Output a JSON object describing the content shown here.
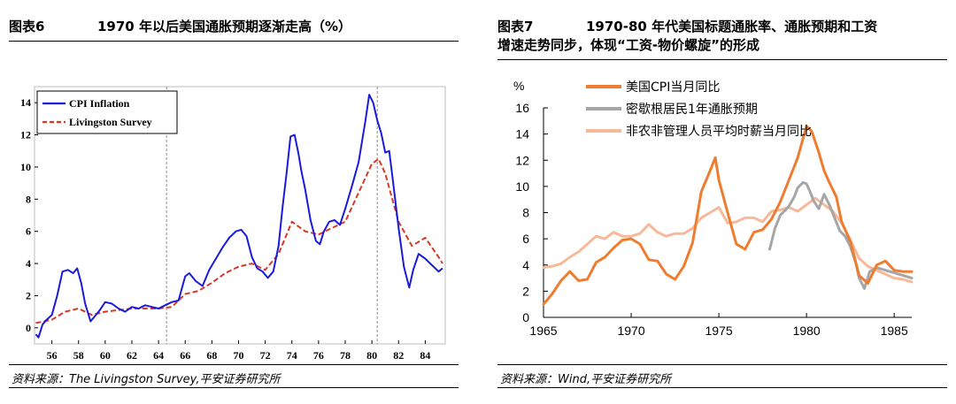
{
  "fig6": {
    "title_num": "图表6",
    "title_text": "1970 年以后美国通胀预期逐渐走高（%）",
    "source": "资料来源：The Livingston Survey,平安证券研究所"
  },
  "fig7": {
    "title_num": "图表7",
    "title_line1": "1970-80 年代美国标题通胀率、通胀预期和工资",
    "title_line2": "增速走势同步，体现“工资-物价螺旋”的形成",
    "source": "资料来源：Wind,平安证券研究所"
  },
  "chart_data": [
    {
      "type": "line",
      "title": "1970 年以后美国通胀预期逐渐走高（%）",
      "xlabel": "",
      "ylabel": "",
      "xlim": [
        1954.7,
        1985.5
      ],
      "ylim": [
        -1,
        15
      ],
      "x_ticks": [
        1956,
        1958,
        1960,
        1962,
        1964,
        1966,
        1968,
        1970,
        1972,
        1974,
        1976,
        1978,
        1980,
        1982,
        1984
      ],
      "x_tick_labels": [
        "56",
        "58",
        "60",
        "62",
        "64",
        "66",
        "68",
        "70",
        "72",
        "74",
        "76",
        "78",
        "80",
        "82",
        "84"
      ],
      "y_ticks": [
        0,
        2,
        4,
        6,
        8,
        10,
        12,
        14
      ],
      "y_tick_labels": [
        "0",
        "2",
        "4",
        "6",
        "8",
        "10",
        "12",
        "14"
      ],
      "vlines": [
        1964.6,
        1980.4
      ],
      "legend": "top-left",
      "series": [
        {
          "name": "CPI Inflation",
          "color": "#1a1adc",
          "style": "solid",
          "x": [
            1954.8,
            1955,
            1955.3,
            1955.6,
            1956,
            1956.4,
            1956.8,
            1957.2,
            1957.6,
            1957.9,
            1958.2,
            1958.5,
            1958.9,
            1959.2,
            1959.6,
            1960,
            1960.5,
            1961,
            1961.5,
            1962,
            1962.5,
            1963,
            1963.5,
            1964,
            1964.5,
            1965,
            1965.5,
            1966,
            1966.3,
            1966.8,
            1967.3,
            1967.8,
            1968.3,
            1968.8,
            1969.3,
            1969.8,
            1970.2,
            1970.6,
            1971,
            1971.4,
            1971.8,
            1972.2,
            1972.6,
            1973,
            1973.3,
            1973.6,
            1973.9,
            1974.2,
            1974.5,
            1974.7,
            1975,
            1975.4,
            1975.8,
            1976.1,
            1976.4,
            1976.8,
            1977.2,
            1977.6,
            1978,
            1978.5,
            1979,
            1979.5,
            1979.8,
            1980.1,
            1980.4,
            1980.7,
            1981,
            1981.3,
            1981.6,
            1982,
            1982.4,
            1982.8,
            1983.1,
            1983.5,
            1984,
            1984.5,
            1985,
            1985.3
          ],
          "y": [
            -0.4,
            -0.6,
            0.2,
            0.5,
            0.8,
            2.0,
            3.5,
            3.6,
            3.4,
            3.7,
            2.8,
            1.5,
            0.4,
            0.7,
            1.1,
            1.6,
            1.5,
            1.2,
            1.0,
            1.3,
            1.2,
            1.4,
            1.3,
            1.2,
            1.4,
            1.6,
            1.7,
            3.2,
            3.4,
            2.9,
            2.6,
            3.6,
            4.3,
            5.0,
            5.6,
            6.0,
            6.1,
            5.7,
            4.4,
            3.7,
            3.5,
            3.1,
            3.5,
            5.1,
            7.5,
            9.6,
            11.9,
            12.0,
            10.8,
            9.8,
            8.6,
            6.7,
            5.4,
            5.2,
            6.0,
            6.6,
            6.7,
            6.4,
            7.4,
            8.8,
            10.3,
            12.8,
            14.5,
            14.0,
            12.9,
            12.1,
            10.9,
            11.0,
            9.0,
            6.2,
            3.8,
            2.5,
            3.6,
            4.6,
            4.3,
            3.9,
            3.5,
            3.7
          ]
        },
        {
          "name": "Livingston Survey",
          "color": "#d43a2c",
          "style": "dashed",
          "x": [
            1954.8,
            1956,
            1957,
            1958,
            1959,
            1960,
            1961,
            1962,
            1963,
            1964,
            1965,
            1966,
            1967,
            1968,
            1969,
            1970,
            1971,
            1972,
            1973,
            1974,
            1975,
            1976,
            1977,
            1978,
            1979,
            1980,
            1980.5,
            1981,
            1981.5,
            1982,
            1983,
            1984,
            1985,
            1985.3
          ],
          "y": [
            0.3,
            0.5,
            1.0,
            1.2,
            0.8,
            1.0,
            1.1,
            1.2,
            1.2,
            1.2,
            1.3,
            2.1,
            2.3,
            2.8,
            3.4,
            3.8,
            4.0,
            3.6,
            4.6,
            6.6,
            6.0,
            5.8,
            6.2,
            6.6,
            8.4,
            10.2,
            10.5,
            9.6,
            8.1,
            6.6,
            5.1,
            5.6,
            4.4,
            4.0
          ]
        }
      ]
    },
    {
      "type": "line",
      "title": "1970-80 年代美国标题通胀率、通胀预期和工资增速走势同步，体现“工资-物价螺旋”的形成",
      "xlabel": "",
      "ylabel": "%",
      "xlim": [
        1965,
        1986
      ],
      "ylim": [
        0,
        16
      ],
      "x_ticks": [
        1965,
        1970,
        1975,
        1980,
        1985
      ],
      "x_tick_labels": [
        "1965",
        "1970",
        "1975",
        "1980",
        "1985"
      ],
      "y_ticks": [
        0,
        2,
        4,
        6,
        8,
        10,
        12,
        14,
        16
      ],
      "y_tick_labels": [
        "0",
        "2",
        "4",
        "6",
        "8",
        "10",
        "12",
        "14",
        "16"
      ],
      "legend": "top",
      "series": [
        {
          "name": "非农非管理人员平均时薪当月同比",
          "color": "#f6b99a",
          "style": "solid",
          "x": [
            1965,
            1965.5,
            1966,
            1966.5,
            1967,
            1967.5,
            1968,
            1968.5,
            1969,
            1969.5,
            1970,
            1970.5,
            1971,
            1971.5,
            1972,
            1972.5,
            1973,
            1973.5,
            1974,
            1974.5,
            1975,
            1975.5,
            1976,
            1976.5,
            1977,
            1977.5,
            1978,
            1978.5,
            1979,
            1979.5,
            1980,
            1980.5,
            1981,
            1981.5,
            1982,
            1982.5,
            1983,
            1983.5,
            1984,
            1984.5,
            1985,
            1985.5,
            1986
          ],
          "y": [
            3.8,
            3.9,
            4.1,
            4.6,
            5.0,
            5.6,
            6.2,
            6.0,
            6.5,
            6.2,
            6.2,
            6.4,
            7.1,
            6.5,
            6.2,
            6.4,
            6.4,
            6.8,
            7.6,
            8.0,
            8.4,
            7.2,
            7.3,
            7.6,
            7.6,
            7.3,
            8.1,
            8.2,
            8.4,
            8.1,
            8.6,
            9.1,
            8.6,
            8.1,
            7.2,
            5.9,
            4.5,
            3.9,
            3.6,
            3.3,
            3.0,
            2.9,
            2.7
          ]
        },
        {
          "name": "密歇根居民1年通胀预期",
          "color": "#a6a6a6",
          "style": "solid",
          "x": [
            1977.9,
            1978.2,
            1978.5,
            1978.8,
            1979,
            1979.3,
            1979.5,
            1979.8,
            1980,
            1980.2,
            1980.4,
            1980.7,
            1981,
            1981.3,
            1981.6,
            1981.9,
            1982.2,
            1982.5,
            1982.8,
            1983,
            1983.3,
            1983.6,
            1984,
            1984.5,
            1985,
            1985.5,
            1986
          ],
          "y": [
            5.2,
            6.8,
            7.8,
            8.2,
            8.5,
            9.2,
            9.9,
            10.3,
            10.2,
            9.6,
            8.9,
            8.3,
            9.4,
            8.6,
            7.6,
            6.6,
            6.2,
            5.4,
            4.2,
            3.0,
            2.2,
            3.5,
            3.8,
            3.6,
            3.4,
            3.2,
            3.0
          ]
        },
        {
          "name": "美国CPI当月同比",
          "color": "#ee7d31",
          "style": "solid",
          "x": [
            1965,
            1965.5,
            1966,
            1966.5,
            1967,
            1967.5,
            1968,
            1968.5,
            1969,
            1969.5,
            1970,
            1970.5,
            1971,
            1971.5,
            1972,
            1972.5,
            1973,
            1973.5,
            1974,
            1974.5,
            1974.8,
            1975,
            1975.5,
            1976,
            1976.5,
            1977,
            1977.5,
            1978,
            1978.5,
            1979,
            1979.5,
            1980,
            1980.3,
            1980.7,
            1981,
            1981.3,
            1981.7,
            1982,
            1982.5,
            1983,
            1983.5,
            1984,
            1984.5,
            1985,
            1985.5,
            1986
          ],
          "y": [
            1.0,
            1.8,
            2.8,
            3.5,
            2.8,
            2.9,
            4.2,
            4.6,
            5.3,
            5.9,
            6.0,
            5.6,
            4.4,
            4.3,
            3.3,
            2.9,
            3.9,
            5.7,
            9.6,
            11.2,
            12.2,
            10.5,
            8.0,
            5.6,
            5.2,
            6.5,
            6.7,
            7.5,
            8.8,
            10.5,
            12.2,
            14.6,
            14.2,
            12.6,
            11.2,
            10.3,
            9.2,
            7.3,
            5.8,
            3.2,
            2.6,
            4.0,
            4.3,
            3.6,
            3.5,
            3.5
          ]
        }
      ]
    }
  ]
}
